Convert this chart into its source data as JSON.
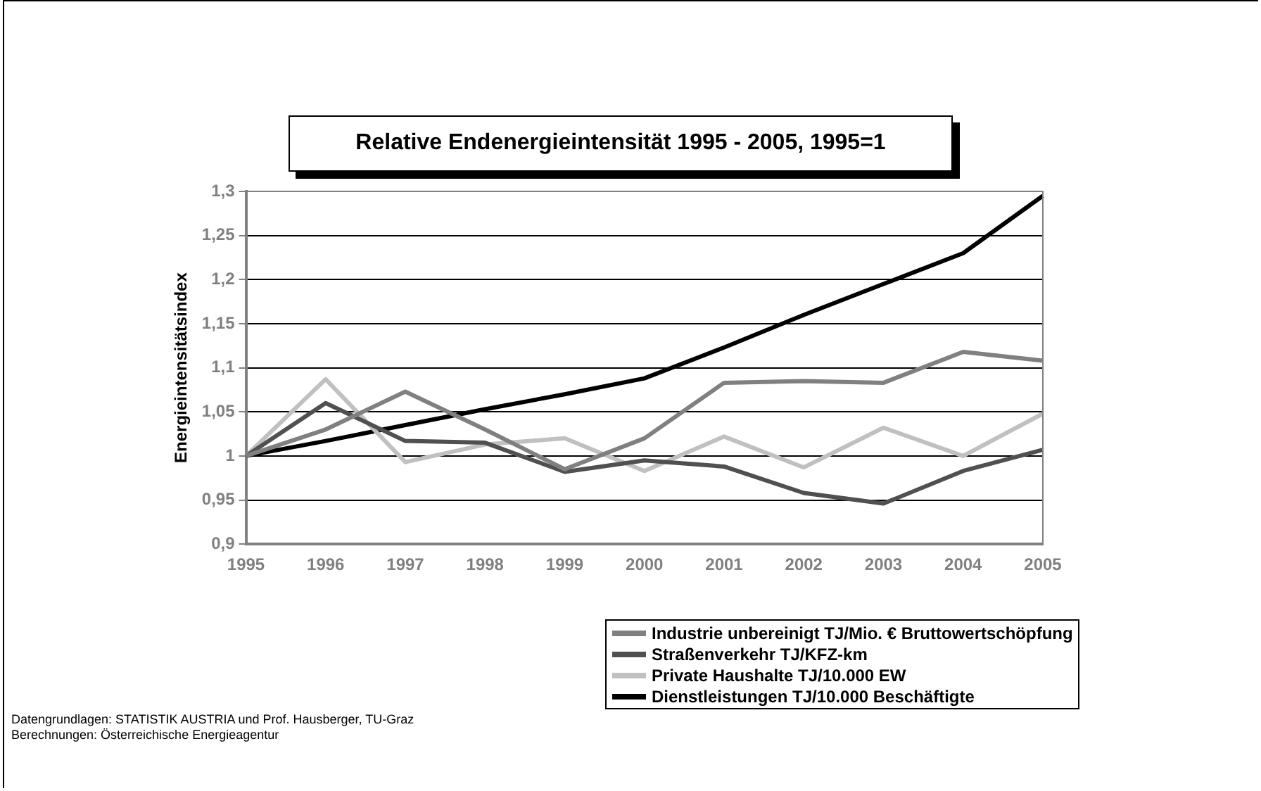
{
  "chart_data": {
    "type": "line",
    "title": "Relative Endenergieintensität  1995 - 2005, 1995=1",
    "ylabel": "Energieintensitätsindex",
    "categories": [
      "1995",
      "1996",
      "1997",
      "1998",
      "1999",
      "2000",
      "2001",
      "2002",
      "2003",
      "2004",
      "2005"
    ],
    "series": [
      {
        "name": "Industrie unbereinigt TJ/Mio. € Bruttowertschöpfung",
        "color": "#808080",
        "values": [
          1,
          1.03,
          1.073,
          1.03,
          0.985,
          1.02,
          1.083,
          1.085,
          1.083,
          1.118,
          1.108
        ]
      },
      {
        "name": "Straßenverkehr TJ/KFZ-km",
        "color": "#505050",
        "values": [
          1,
          1.06,
          1.017,
          1.015,
          0.982,
          0.995,
          0.988,
          0.958,
          0.946,
          0.983,
          1.007
        ]
      },
      {
        "name": "Private Haushalte TJ/10.000 EW",
        "color": "#c0c0c0",
        "values": [
          1,
          1.087,
          0.993,
          1.013,
          1.02,
          0.983,
          1.022,
          0.987,
          1.032,
          1.0,
          1.048
        ]
      },
      {
        "name": "Dienstleistungen TJ/10.000 Beschäftigte",
        "color": "#000000",
        "values": [
          1,
          1.017,
          1.035,
          1.053,
          1.07,
          1.088,
          1.123,
          1.16,
          1.195,
          1.23,
          1.295
        ]
      }
    ],
    "ylim": [
      0.9,
      1.3
    ],
    "yticks": [
      {
        "value": 0.9,
        "label": "0,9"
      },
      {
        "value": 0.95,
        "label": "0,95"
      },
      {
        "value": 1,
        "label": "1"
      },
      {
        "value": 1.05,
        "label": "1,05"
      },
      {
        "value": 1.1,
        "label": "1,1"
      },
      {
        "value": 1.15,
        "label": "1,15"
      },
      {
        "value": 1.2,
        "label": "1,2"
      },
      {
        "value": 1.25,
        "label": "1,25"
      },
      {
        "value": 1.3,
        "label": "1,3"
      }
    ],
    "grid": "y",
    "legend": "bottom right",
    "marker": "none",
    "line_style": "solid",
    "annotations": [
      "Datengrundlagen: STATISTIK AUSTRIA und Prof. Hausberger, TU-Graz",
      "Berechnungen: Österreichische Energieagentur"
    ]
  }
}
